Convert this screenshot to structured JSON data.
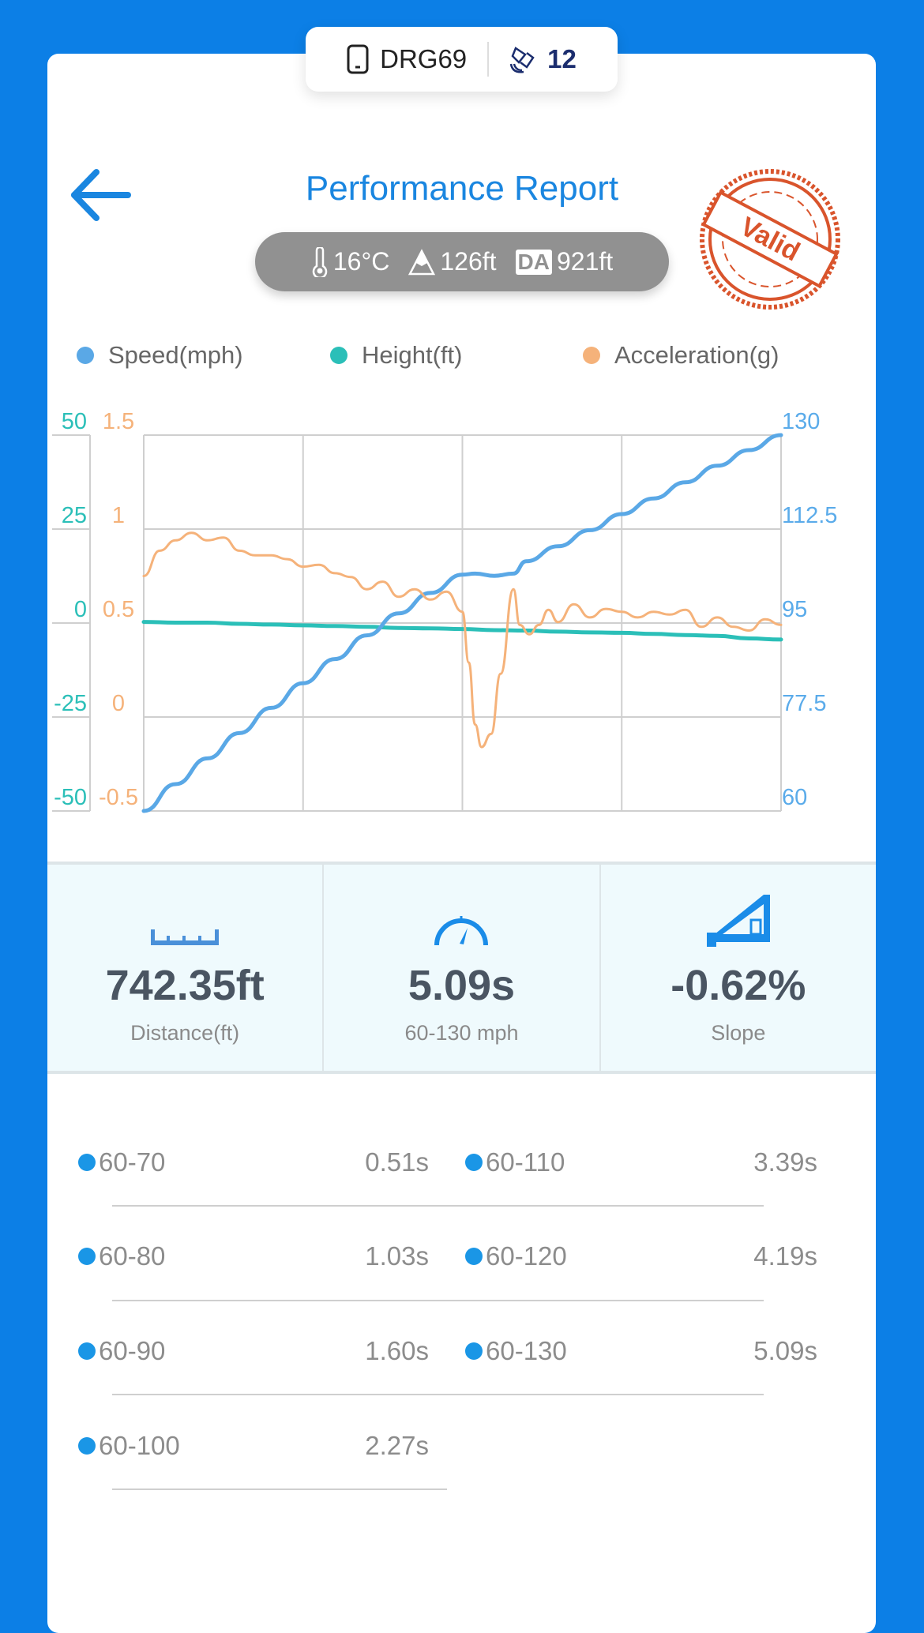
{
  "device": {
    "name": "DRG69",
    "count": "12",
    "device_icon": "phone-icon",
    "count_icon": "satellite-icon"
  },
  "header": {
    "title": "Performance Report",
    "back_icon": "arrow-left-icon",
    "stamp_text": "Valid"
  },
  "conditions": {
    "temperature": "16°C",
    "altitude": "126ft",
    "da_label": "DA",
    "density_altitude": "921ft"
  },
  "legend": [
    {
      "label": "Speed(mph)",
      "color": "#5aa8e6"
    },
    {
      "label": "Height(ft)",
      "color": "#2bbfb8"
    },
    {
      "label": "Acceleration(g)",
      "color": "#f5b27a"
    }
  ],
  "chart_data": {
    "type": "line",
    "grid": true,
    "legend_position": "top",
    "axes": {
      "left_height": {
        "ticks": [
          "50",
          "25",
          "0",
          "-25",
          "-50"
        ],
        "range": [
          -50,
          50
        ],
        "color": "#2bbfb8"
      },
      "left_acceleration": {
        "ticks": [
          "1.5",
          "1",
          "0.5",
          "0",
          "-0.5"
        ],
        "range": [
          -0.5,
          1.5
        ],
        "color": "#f5b27a"
      },
      "right_speed": {
        "ticks": [
          "130",
          "112.5",
          "95",
          "77.5",
          "60"
        ],
        "range": [
          60,
          130
        ],
        "color": "#5aabea"
      }
    },
    "series": [
      {
        "name": "Speed(mph)",
        "axis": "right_speed",
        "color": "#5aa8e6",
        "x": [
          0,
          5,
          10,
          15,
          20,
          25,
          30,
          35,
          40,
          45,
          50,
          52,
          55,
          58,
          60,
          65,
          70,
          75,
          80,
          85,
          90,
          95,
          100
        ],
        "y": [
          60,
          65,
          69.8,
          74.5,
          79.2,
          83.8,
          88.3,
          92.7,
          96.8,
          100.6,
          104,
          104.2,
          103.8,
          104.2,
          106.5,
          109.3,
          112.3,
          115.3,
          118.2,
          121.2,
          124.3,
          127.2,
          130
        ]
      },
      {
        "name": "Height(ft)",
        "axis": "left_height",
        "color": "#2bbfb8",
        "x": [
          0,
          5,
          10,
          15,
          20,
          25,
          30,
          35,
          40,
          45,
          50,
          55,
          60,
          65,
          70,
          75,
          80,
          85,
          90,
          95,
          100
        ],
        "y": [
          0.3,
          0.1,
          0.1,
          -0.2,
          -0.4,
          -0.6,
          -0.8,
          -1.0,
          -1.3,
          -1.4,
          -1.6,
          -1.9,
          -2.0,
          -2.3,
          -2.5,
          -2.6,
          -2.9,
          -3.2,
          -3.4,
          -4.1,
          -4.4
        ]
      },
      {
        "name": "Acceleration(g)",
        "axis": "left_acceleration",
        "color": "#f5b27a",
        "x": [
          0,
          2.5,
          5,
          7.5,
          10,
          12.5,
          15,
          17.5,
          20,
          22.5,
          25,
          27.5,
          30,
          32.5,
          35,
          37.5,
          40,
          42.5,
          45,
          47.5,
          50,
          51,
          52,
          53,
          54.5,
          56,
          58,
          59,
          60.5,
          62,
          63.5,
          65,
          67.5,
          70,
          72.5,
          75,
          77.5,
          80,
          82.5,
          85,
          87.5,
          90,
          92.5,
          95,
          97.5,
          100
        ],
        "y": [
          0.75,
          0.885,
          0.94,
          0.98,
          0.94,
          0.955,
          0.885,
          0.86,
          0.86,
          0.84,
          0.8,
          0.81,
          0.765,
          0.745,
          0.68,
          0.72,
          0.64,
          0.68,
          0.625,
          0.667,
          0.56,
          0.29,
          -0.04,
          -0.16,
          -0.09,
          0.23,
          0.68,
          0.49,
          0.44,
          0.49,
          0.57,
          0.505,
          0.6,
          0.53,
          0.575,
          0.56,
          0.53,
          0.56,
          0.545,
          0.57,
          0.48,
          0.53,
          0.48,
          0.46,
          0.52,
          0.49
        ]
      }
    ]
  },
  "stats": [
    {
      "icon": "ruler-icon",
      "value": "742.35ft",
      "label": "Distance(ft)"
    },
    {
      "icon": "speedometer-icon",
      "value": "5.09s",
      "label": "60-130 mph"
    },
    {
      "icon": "slope-icon",
      "value": "-0.62%",
      "label": "Slope"
    }
  ],
  "splits": [
    {
      "label": "60-70",
      "value": "0.51s"
    },
    {
      "label": "60-80",
      "value": "1.03s"
    },
    {
      "label": "60-90",
      "value": "1.60s"
    },
    {
      "label": "60-100",
      "value": "2.27s"
    },
    {
      "label": "60-110",
      "value": "3.39s"
    },
    {
      "label": "60-120",
      "value": "4.19s"
    },
    {
      "label": "60-130",
      "value": "5.09s"
    }
  ]
}
